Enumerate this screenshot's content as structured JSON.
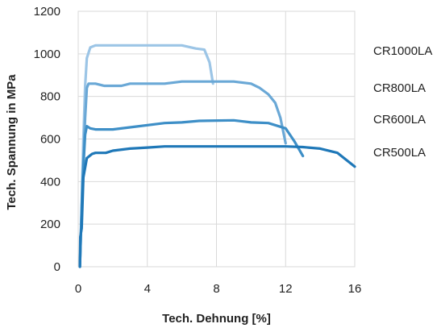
{
  "chart_data": {
    "type": "line",
    "xlabel": "Tech. Dehnung [%]",
    "ylabel": "Tech. Spannung in MPa",
    "xlim": [
      0,
      16
    ],
    "ylim": [
      0,
      1200
    ],
    "xticks": [
      0,
      4,
      8,
      12,
      16
    ],
    "yticks": [
      0,
      200,
      400,
      600,
      800,
      1000,
      1200
    ],
    "x_tick_labels": [
      "0",
      "4",
      "8",
      "12",
      "16"
    ],
    "y_tick_labels": [
      "0",
      "200",
      "400",
      "600",
      "800",
      "1000",
      "1200"
    ],
    "grid": true,
    "legend": "labels at right end of each curve",
    "series": [
      {
        "name": "CR1000LA",
        "color": "#9cc5e6",
        "points": [
          [
            0.1,
            0
          ],
          [
            0.2,
            300
          ],
          [
            0.3,
            600
          ],
          [
            0.4,
            850
          ],
          [
            0.5,
            980
          ],
          [
            0.7,
            1030
          ],
          [
            1.0,
            1040
          ],
          [
            3,
            1040
          ],
          [
            5,
            1040
          ],
          [
            6,
            1040
          ],
          [
            6.8,
            1025
          ],
          [
            7.3,
            1020
          ],
          [
            7.6,
            960
          ],
          [
            7.8,
            860
          ]
        ]
      },
      {
        "name": "CR800LA",
        "color": "#6aa8d6",
        "points": [
          [
            0.1,
            0
          ],
          [
            0.25,
            400
          ],
          [
            0.4,
            700
          ],
          [
            0.5,
            840
          ],
          [
            0.6,
            860
          ],
          [
            1.0,
            860
          ],
          [
            1.5,
            850
          ],
          [
            2.5,
            850
          ],
          [
            3,
            860
          ],
          [
            5,
            860
          ],
          [
            6,
            870
          ],
          [
            8,
            870
          ],
          [
            9,
            870
          ],
          [
            10,
            860
          ],
          [
            10.5,
            840
          ],
          [
            11.0,
            810
          ],
          [
            11.4,
            770
          ],
          [
            11.7,
            700
          ],
          [
            12.0,
            580
          ]
        ]
      },
      {
        "name": "CR600LA",
        "color": "#3e8fc7",
        "points": [
          [
            0.1,
            0
          ],
          [
            0.25,
            400
          ],
          [
            0.4,
            620
          ],
          [
            0.5,
            660
          ],
          [
            0.7,
            650
          ],
          [
            1.0,
            645
          ],
          [
            2.0,
            645
          ],
          [
            3,
            655
          ],
          [
            5,
            675
          ],
          [
            6,
            678
          ],
          [
            7,
            685
          ],
          [
            9,
            688
          ],
          [
            10,
            678
          ],
          [
            11,
            675
          ],
          [
            12,
            650
          ],
          [
            12.5,
            590
          ],
          [
            13.0,
            520
          ]
        ]
      },
      {
        "name": "CR500LA",
        "color": "#1f78b8",
        "points": [
          [
            0.1,
            0
          ],
          [
            0.12,
            140
          ],
          [
            0.2,
            180
          ],
          [
            0.3,
            420
          ],
          [
            0.5,
            510
          ],
          [
            0.8,
            530
          ],
          [
            1.0,
            535
          ],
          [
            1.6,
            535
          ],
          [
            2,
            545
          ],
          [
            3,
            555
          ],
          [
            4,
            560
          ],
          [
            5,
            565
          ],
          [
            8,
            565
          ],
          [
            10,
            565
          ],
          [
            12,
            565
          ],
          [
            13,
            562
          ],
          [
            14,
            555
          ],
          [
            15,
            535
          ],
          [
            16,
            470
          ]
        ]
      }
    ]
  }
}
